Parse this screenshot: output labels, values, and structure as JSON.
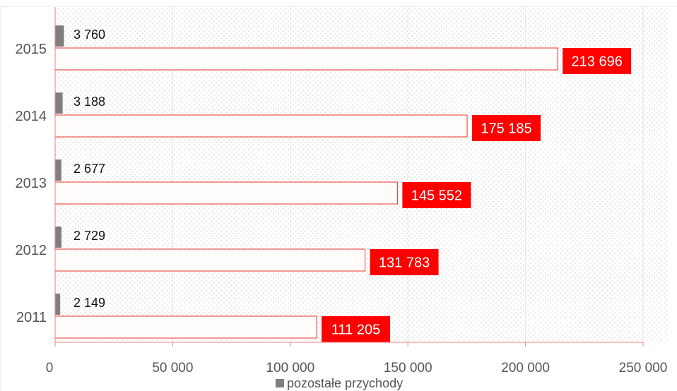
{
  "chart_data": {
    "type": "bar",
    "orientation": "horizontal",
    "categories": [
      "2015",
      "2014",
      "2013",
      "2012",
      "2011"
    ],
    "series": [
      {
        "name": "",
        "values": [
          213696,
          175185,
          145552,
          131783,
          111205
        ],
        "value_labels": [
          "213 696",
          "175 185",
          "145 552",
          "131 783",
          "111 205"
        ]
      },
      {
        "name": "pozostałe przychody",
        "values": [
          3760,
          3188,
          2677,
          2729,
          2149
        ],
        "value_labels": [
          "3 760",
          "3 188",
          "2 677",
          "2 729",
          "2 149"
        ]
      }
    ],
    "xlim": [
      0,
      250000
    ],
    "x_ticks": [
      0,
      50000,
      100000,
      150000,
      200000,
      250000
    ],
    "x_tick_labels": [
      "0",
      "50 000",
      "100 000",
      "150 000",
      "200 000",
      "250 000"
    ],
    "grid": "vertical",
    "legend": "bottom",
    "legend_entries": [
      "pozostałe przychody"
    ],
    "colors": {
      "main_bar_fill": "#fffdfb",
      "main_bar_stroke": "#e8322e",
      "main_label_bg": "#ff0000",
      "other_bar": "#7f7f7f",
      "grid": "#e6e6e6",
      "axis": "#f08080"
    }
  }
}
